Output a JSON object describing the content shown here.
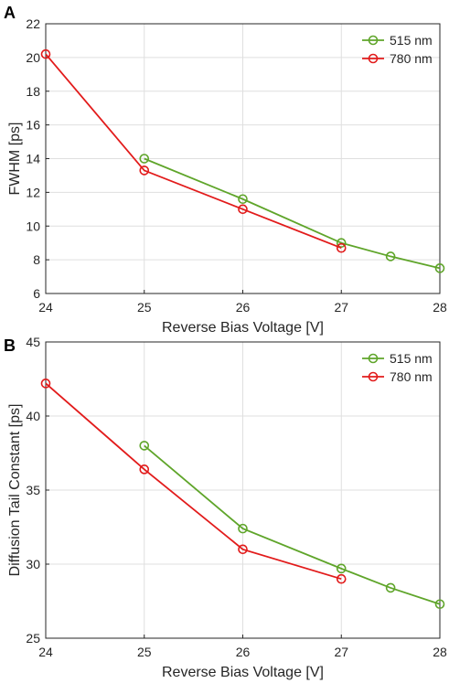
{
  "chart_data": [
    {
      "type": "line",
      "panel_label": "A",
      "xlabel": "Reverse Bias Voltage [V]",
      "ylabel": "FWHM [ps]",
      "xlim": [
        24,
        28
      ],
      "ylim": [
        6,
        22
      ],
      "xticks": [
        24,
        25,
        26,
        27,
        28
      ],
      "yticks": [
        6,
        8,
        10,
        12,
        14,
        16,
        18,
        20,
        22
      ],
      "grid": true,
      "legend_position": "top-right",
      "series": [
        {
          "name": "515 nm",
          "color": "#5fa52a",
          "x": [
            25,
            26,
            27,
            27.5,
            28
          ],
          "y": [
            14.0,
            11.6,
            9.0,
            8.2,
            7.5
          ]
        },
        {
          "name": "780 nm",
          "color": "#e21b1b",
          "x": [
            24,
            25,
            26,
            27
          ],
          "y": [
            20.2,
            13.3,
            11.0,
            8.7
          ]
        }
      ]
    },
    {
      "type": "line",
      "panel_label": "B",
      "xlabel": "Reverse Bias Voltage [V]",
      "ylabel": "Diffusion Tail Constant [ps]",
      "xlim": [
        24,
        28
      ],
      "ylim": [
        25,
        45
      ],
      "xticks": [
        24,
        25,
        26,
        27,
        28
      ],
      "yticks": [
        25,
        30,
        35,
        40,
        45
      ],
      "grid": true,
      "legend_position": "top-right",
      "series": [
        {
          "name": "515 nm",
          "color": "#5fa52a",
          "x": [
            25,
            26,
            27,
            27.5,
            28
          ],
          "y": [
            38.0,
            32.4,
            29.7,
            28.4,
            27.3
          ]
        },
        {
          "name": "780 nm",
          "color": "#e21b1b",
          "x": [
            24,
            25,
            26,
            27
          ],
          "y": [
            42.2,
            36.4,
            31.0,
            29.0
          ]
        }
      ]
    }
  ]
}
